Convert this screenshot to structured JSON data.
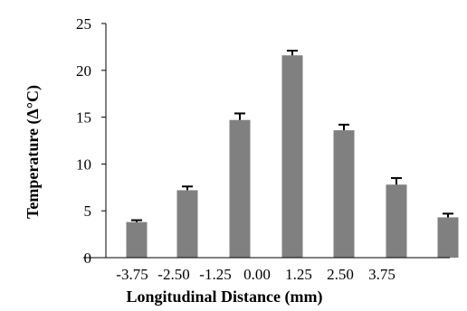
{
  "chart_data": {
    "type": "bar",
    "title": "",
    "xlabel": "Longitudinal Distance (mm)",
    "ylabel": "Temperature  (Δ°C)",
    "x_tick_labels": [
      "-3.75",
      "-2.50",
      "-1.25",
      "0.00",
      "1.25",
      "2.50",
      "3.75"
    ],
    "yticks": [
      "0",
      "5",
      "10",
      "15",
      "20",
      "25"
    ],
    "ylim": [
      0,
      25
    ],
    "grid": false,
    "legend": "none",
    "bar_color": "#808080",
    "series": [
      {
        "values": [
          3.8,
          7.2,
          14.7,
          21.6,
          13.6,
          7.8,
          4.3
        ],
        "error": [
          0.2,
          0.4,
          0.7,
          0.5,
          0.6,
          0.7,
          0.4
        ]
      }
    ]
  }
}
